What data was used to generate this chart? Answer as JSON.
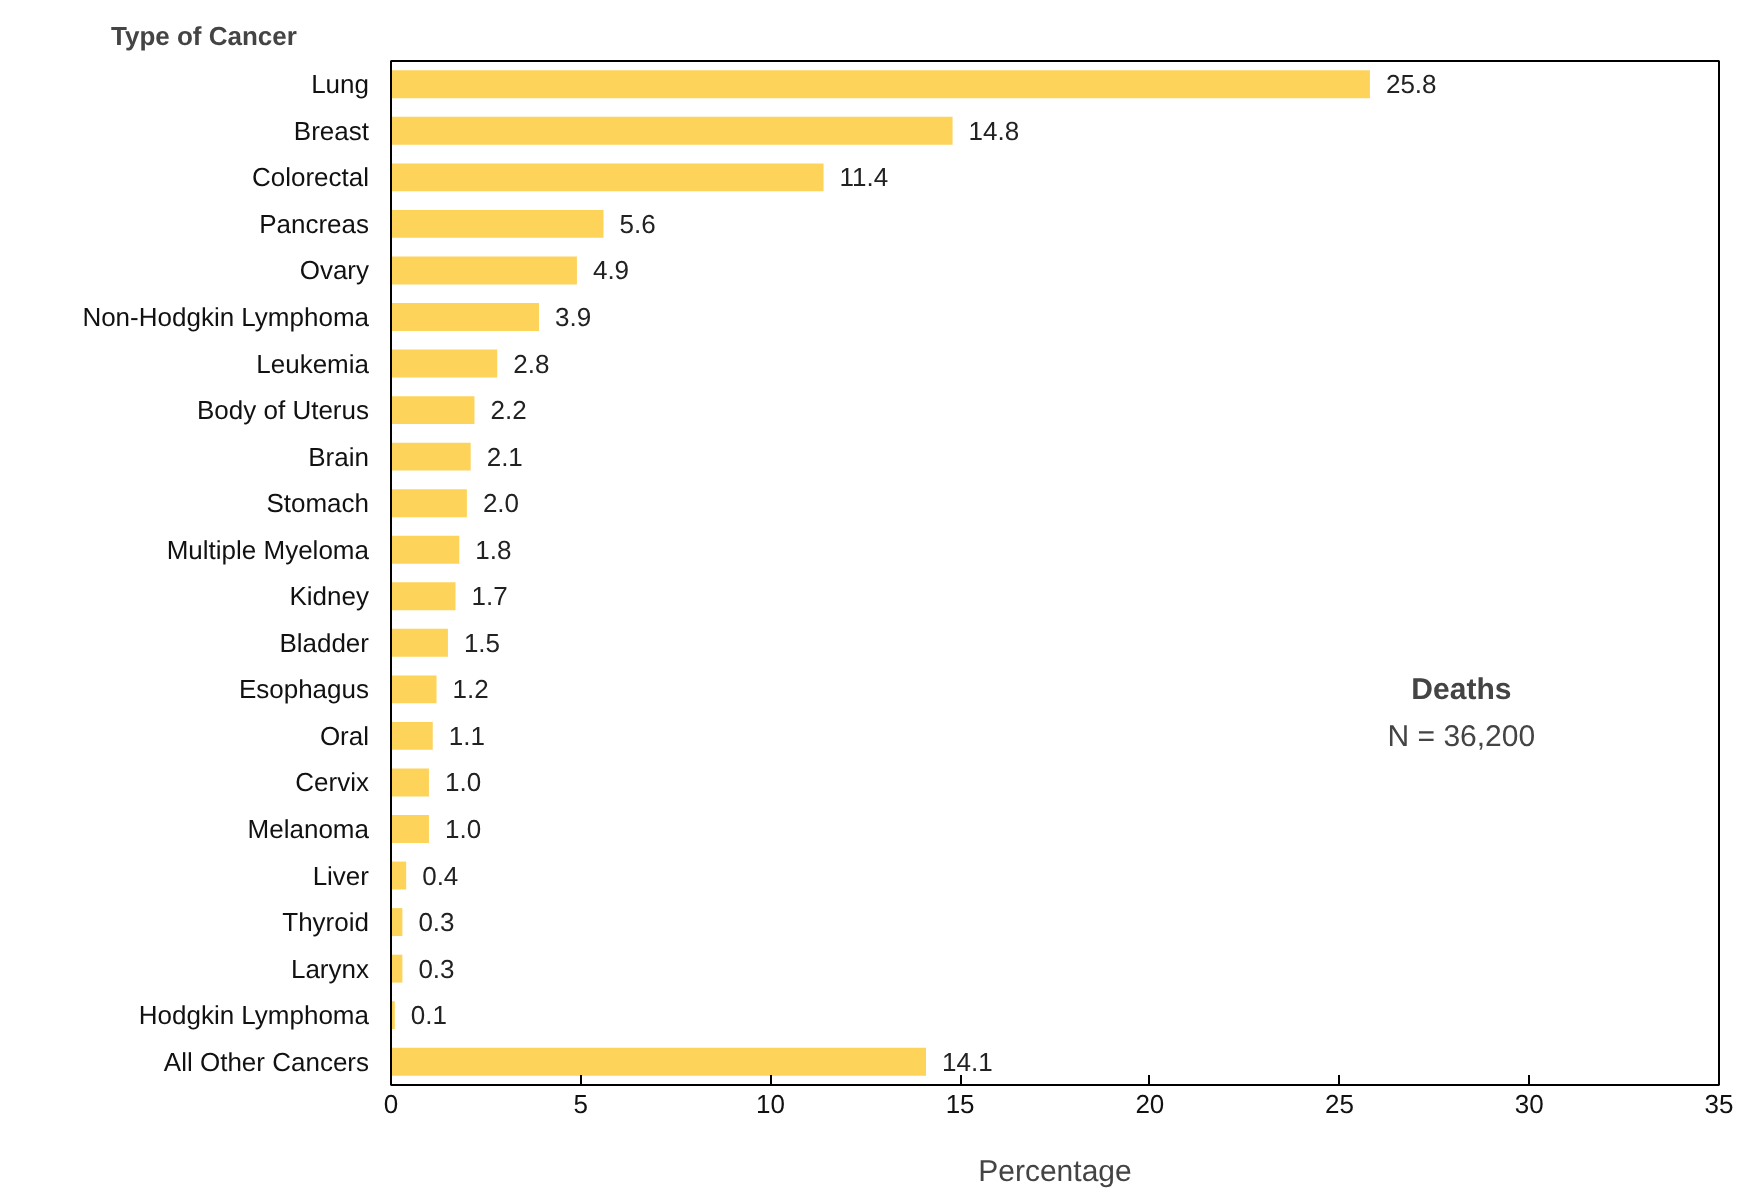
{
  "chart_data": {
    "type": "bar",
    "orientation": "horizontal",
    "ylabel": "Type of Cancer",
    "xlabel": "Percentage",
    "categories": [
      "Lung",
      "Breast",
      "Colorectal",
      "Pancreas",
      "Ovary",
      "Non-Hodgkin Lymphoma",
      "Leukemia",
      "Body of Uterus",
      "Brain",
      "Stomach",
      "Multiple Myeloma",
      "Kidney",
      "Bladder",
      "Esophagus",
      "Oral",
      "Cervix",
      "Melanoma",
      "Liver",
      "Thyroid",
      "Larynx",
      "Hodgkin Lymphoma",
      "All Other Cancers"
    ],
    "values": [
      25.8,
      14.8,
      11.4,
      5.6,
      4.9,
      3.9,
      2.8,
      2.2,
      2.1,
      2.0,
      1.8,
      1.7,
      1.5,
      1.2,
      1.1,
      1.0,
      1.0,
      0.4,
      0.3,
      0.3,
      0.1,
      14.1
    ],
    "value_labels": [
      "25.8",
      "14.8",
      "11.4",
      "5.6",
      "4.9",
      "3.9",
      "2.8",
      "2.2",
      "2.1",
      "2.0",
      "1.8",
      "1.7",
      "1.5",
      "1.2",
      "1.1",
      "1.0",
      "1.0",
      "0.4",
      "0.3",
      "0.3",
      "0.1",
      "14.1"
    ],
    "color": "#fdd35a",
    "xlim": [
      0,
      35
    ],
    "xticks": [
      0,
      5,
      10,
      15,
      20,
      25,
      30,
      35
    ],
    "grid": false,
    "annotations": [
      "Deaths",
      "N = 36,200"
    ]
  }
}
